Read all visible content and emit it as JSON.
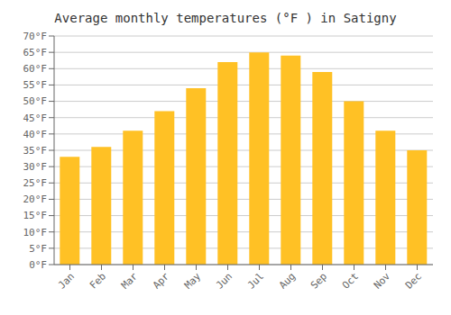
{
  "chart_data": {
    "type": "bar",
    "title": "Average monthly temperatures (°F ) in Satigny",
    "categories": [
      "Jan",
      "Feb",
      "Mar",
      "Apr",
      "May",
      "Jun",
      "Jul",
      "Aug",
      "Sep",
      "Oct",
      "Nov",
      "Dec"
    ],
    "values": [
      33,
      36,
      41,
      47,
      54,
      62,
      65,
      64,
      59,
      50,
      41,
      35
    ],
    "color": "#FFC125",
    "ylim": [
      0,
      70
    ],
    "yticks": [
      {
        "value": 0,
        "label": "0°F"
      },
      {
        "value": 5,
        "label": "5°F"
      },
      {
        "value": 10,
        "label": "10°F"
      },
      {
        "value": 15,
        "label": "15°F"
      },
      {
        "value": 20,
        "label": "20°F"
      },
      {
        "value": 25,
        "label": "25°F"
      },
      {
        "value": 30,
        "label": "30°F"
      },
      {
        "value": 35,
        "label": "35°F"
      },
      {
        "value": 40,
        "label": "40°F"
      },
      {
        "value": 45,
        "label": "45°F"
      },
      {
        "value": 50,
        "label": "50°F"
      },
      {
        "value": 55,
        "label": "55°F"
      },
      {
        "value": 60,
        "label": "60°F"
      },
      {
        "value": 65,
        "label": "65°F"
      },
      {
        "value": 70,
        "label": "70°F"
      }
    ],
    "grid": true
  }
}
